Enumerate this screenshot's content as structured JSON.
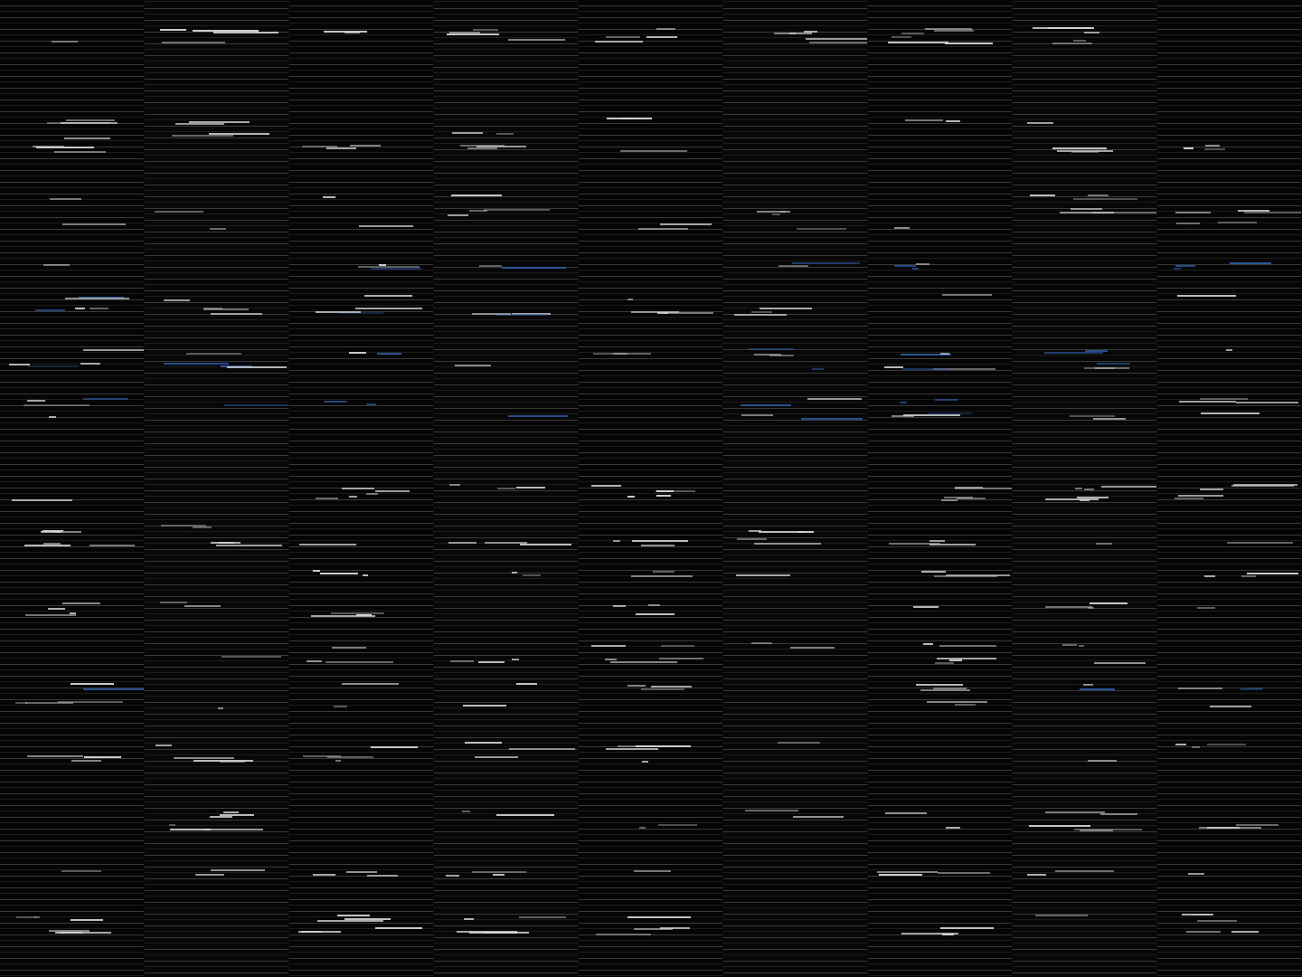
{
  "screen": {
    "state": "corrupted-render",
    "columns": 9,
    "colors": {
      "background": "#000000",
      "scanline": "#3a3a3a",
      "text_fragment": "#d8d8d8",
      "accent_fragment": "#2f5fa8"
    }
  }
}
